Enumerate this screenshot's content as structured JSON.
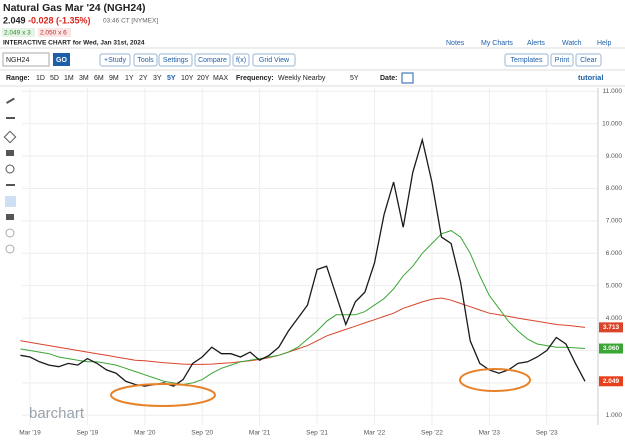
{
  "header": {
    "title": "Natural Gas Mar '24 (NGH24)",
    "last": "2.049",
    "change": "-0.028 (-1.35%)",
    "time": "03:46 CT [NYMEX]",
    "bid": "2.049 x 3",
    "ask": "2.050 x 6",
    "subtitle": "INTERACTIVE CHART for Wed, Jan 31st, 2024",
    "links": [
      "Notes",
      "My Charts",
      "Alerts",
      "Watch",
      "Help"
    ]
  },
  "toolbar": {
    "symbol": "NGH24",
    "go": "GO",
    "buttons": [
      "+Study",
      "Tools",
      "Settings",
      "Compare",
      "f(x)",
      "Grid View"
    ],
    "right_buttons": [
      "Templates",
      "Print",
      "Clear"
    ]
  },
  "range_bar": {
    "range_label": "Range:",
    "ranges": [
      "1D",
      "5D",
      "1M",
      "3M",
      "6M",
      "9M",
      "1Y",
      "2Y",
      "3Y",
      "5Y",
      "10Y",
      "20Y",
      "MAX"
    ],
    "selected": "5Y",
    "frequency_label": "Frequency:",
    "frequency": "Weekly Nearby",
    "period": "5Y",
    "date_label": "Date:",
    "tutorial": "tutorial"
  },
  "chart_data": {
    "type": "line",
    "watermark": "barchart",
    "categories": [
      null,
      "Mar '19",
      null,
      null,
      null,
      null,
      null,
      "Sep '19",
      null,
      null,
      null,
      null,
      null,
      "Mar '20",
      null,
      null,
      null,
      null,
      null,
      "Sep '20",
      null,
      null,
      null,
      null,
      null,
      "Mar '21",
      null,
      null,
      null,
      null,
      null,
      "Sep '21",
      null,
      null,
      null,
      null,
      null,
      "Mar '22",
      null,
      null,
      null,
      null,
      null,
      "Sep '22",
      null,
      null,
      null,
      null,
      null,
      "Mar '23",
      null,
      null,
      null,
      null,
      null,
      "Sep '23",
      null,
      null,
      null,
      null
    ],
    "series": [
      {
        "color": "#1a1a1a",
        "values": [
          2.85,
          2.8,
          2.65,
          2.55,
          2.5,
          2.6,
          2.55,
          2.75,
          2.6,
          2.4,
          2.3,
          2.05,
          1.95,
          1.9,
          1.95,
          2.0,
          1.9,
          2.1,
          2.6,
          2.8,
          3.1,
          2.9,
          2.9,
          2.8,
          2.95,
          2.7,
          2.85,
          3.1,
          3.6,
          4.0,
          4.4,
          5.5,
          5.6,
          4.7,
          3.8,
          4.5,
          4.8,
          5.7,
          7.2,
          8.2,
          6.8,
          8.5,
          9.5,
          8.2,
          6.5,
          6.3,
          5.1,
          3.3,
          2.6,
          2.4,
          2.3,
          2.4,
          2.6,
          2.65,
          2.8,
          3.0,
          3.4,
          3.2,
          2.6,
          2.049
        ],
        "last_label": "2.049",
        "label_color": "#e8401c"
      },
      {
        "color": "#3aa635",
        "values": [
          3.05,
          3.0,
          2.95,
          2.9,
          2.8,
          2.75,
          2.7,
          2.65,
          2.65,
          2.6,
          2.55,
          2.45,
          2.35,
          2.25,
          2.15,
          2.05,
          2.0,
          1.95,
          2.0,
          2.1,
          2.3,
          2.45,
          2.55,
          2.65,
          2.7,
          2.75,
          2.8,
          2.85,
          2.95,
          3.1,
          3.35,
          3.6,
          3.9,
          4.1,
          4.1,
          4.1,
          4.2,
          4.4,
          4.6,
          4.9,
          5.3,
          5.6,
          6.0,
          6.3,
          6.6,
          6.7,
          6.5,
          6.0,
          5.3,
          4.7,
          4.3,
          3.9,
          3.6,
          3.35,
          3.2,
          3.15,
          3.1,
          3.1,
          3.08,
          3.06
        ],
        "last_label": "3.060",
        "label_color": "#3aa635"
      },
      {
        "color": "#d9442b",
        "values": [
          3.3,
          3.25,
          3.2,
          3.15,
          3.1,
          3.05,
          3.0,
          2.95,
          2.9,
          2.85,
          2.8,
          2.75,
          2.7,
          2.68,
          2.65,
          2.62,
          2.6,
          2.58,
          2.57,
          2.57,
          2.58,
          2.6,
          2.62,
          2.65,
          2.68,
          2.72,
          2.78,
          2.85,
          2.95,
          3.05,
          3.15,
          3.3,
          3.45,
          3.55,
          3.65,
          3.75,
          3.85,
          3.95,
          4.05,
          4.15,
          4.3,
          4.4,
          4.5,
          4.58,
          4.62,
          4.55,
          4.45,
          4.35,
          4.25,
          4.15,
          4.1,
          4.05,
          4.0,
          3.95,
          3.9,
          3.85,
          3.8,
          3.78,
          3.75,
          3.713
        ],
        "last_label": "3.713",
        "label_color": "#d9442b"
      }
    ],
    "ylim": [
      0.7,
      11.1
    ],
    "yticks": [
      {
        "value": 1,
        "label": "1.000"
      },
      {
        "value": 2,
        "label": "2.000"
      },
      {
        "value": 3,
        "label": "3.000"
      },
      {
        "value": 4,
        "label": "4.000"
      },
      {
        "value": 5,
        "label": "5.000"
      },
      {
        "value": 6,
        "label": "6.000"
      },
      {
        "value": 7,
        "label": "7.000"
      },
      {
        "value": 8,
        "label": "8.000"
      },
      {
        "value": 9,
        "label": "9.000"
      },
      {
        "value": 10,
        "label": "10.000"
      },
      {
        "value": 11,
        "label": "11.000"
      }
    ],
    "grid": true
  }
}
